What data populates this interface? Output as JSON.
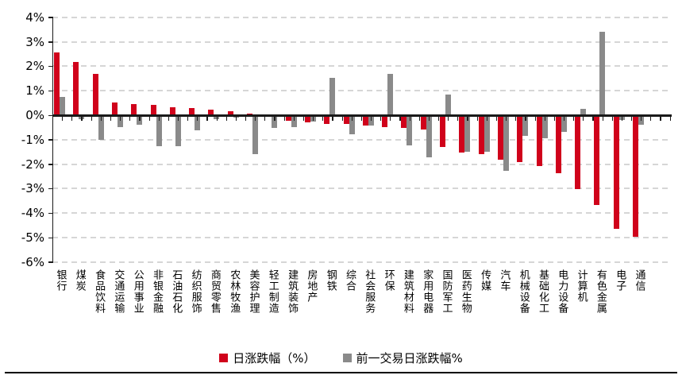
{
  "chart_data": {
    "type": "bar",
    "title": "",
    "xlabel": "",
    "ylabel": "",
    "ylim": [
      -6,
      4
    ],
    "yticks": [
      "4%",
      "3%",
      "2%",
      "1%",
      "0%",
      "-1%",
      "-2%",
      "-3%",
      "-4%",
      "-5%",
      "-6%"
    ],
    "grid": "horizontal-dashed",
    "legend_position": "bottom-center",
    "categories": [
      "银行",
      "煤炭",
      "食品饮料",
      "交通运输",
      "公用事业",
      "非银金融",
      "石油石化",
      "纺织服饰",
      "商贸零售",
      "农林牧渔",
      "美容护理",
      "轻工制造",
      "建筑装饰",
      "房地产",
      "钢铁",
      "综合",
      "社会服务",
      "环保",
      "建筑材料",
      "家用电器",
      "国防军工",
      "医药生物",
      "传媒",
      "汽车",
      "机械设备",
      "基础化工",
      "电力设备",
      "计算机",
      "有色金属",
      "电子",
      "通信"
    ],
    "series": [
      {
        "name": "日涨跌幅（%）",
        "color": "#d0021b",
        "values": [
          2.55,
          2.17,
          1.7,
          0.51,
          0.46,
          0.41,
          0.33,
          0.3,
          0.22,
          0.17,
          0.08,
          -0.03,
          -0.2,
          -0.25,
          -0.34,
          -0.33,
          -0.38,
          -0.47,
          -0.49,
          -0.54,
          -1.28,
          -1.48,
          -1.55,
          -1.78,
          -1.88,
          -2.05,
          -2.33,
          -2.98,
          -3.65,
          -4.62,
          -4.95
        ]
      },
      {
        "name": "前一交易日涨跌幅%",
        "color": "#8a8a8a",
        "values": [
          0.76,
          -0.13,
          -0.97,
          -0.47,
          -0.35,
          -1.22,
          -1.22,
          -0.59,
          -0.14,
          -0.08,
          -1.55,
          -0.5,
          -0.45,
          -0.22,
          1.52,
          -0.76,
          -0.4,
          1.68,
          -1.2,
          -1.7,
          0.84,
          -1.45,
          -1.45,
          -2.25,
          -0.82,
          -0.9,
          -0.64,
          0.27,
          3.4,
          -0.16,
          -0.35
        ]
      }
    ]
  }
}
